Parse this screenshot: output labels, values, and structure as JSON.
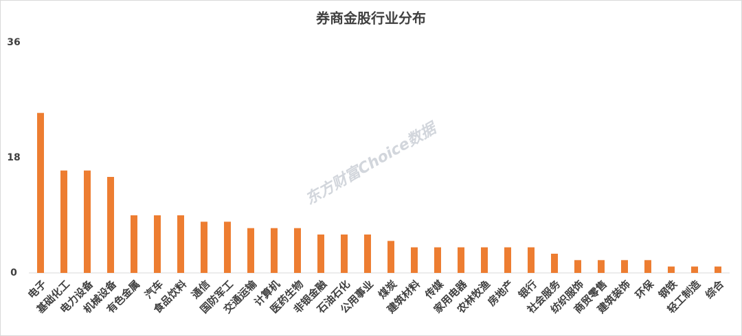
{
  "chart_data": {
    "type": "bar",
    "title": "券商金股行业分布",
    "watermark": "东方财富Choice数据",
    "categories": [
      "电子",
      "基础化工",
      "电力设备",
      "机械设备",
      "有色金属",
      "汽车",
      "食品饮料",
      "通信",
      "国防军工",
      "交通运输",
      "计算机",
      "医药生物",
      "非银金融",
      "石油石化",
      "公用事业",
      "煤炭",
      "建筑材料",
      "传媒",
      "家用电器",
      "农林牧渔",
      "房地产",
      "银行",
      "社会服务",
      "纺织服饰",
      "商贸零售",
      "建筑装饰",
      "环保",
      "钢铁",
      "轻工制造",
      "综合"
    ],
    "values": [
      25,
      16,
      16,
      15,
      9,
      9,
      9,
      8,
      8,
      7,
      7,
      7,
      6,
      6,
      6,
      5,
      4,
      4,
      4,
      4,
      4,
      4,
      3,
      2,
      2,
      2,
      2,
      1,
      1,
      1
    ],
    "color": "#ed7d31",
    "ylim": [
      0,
      36
    ],
    "yticks": [
      0,
      18,
      36
    ],
    "grid": false
  }
}
